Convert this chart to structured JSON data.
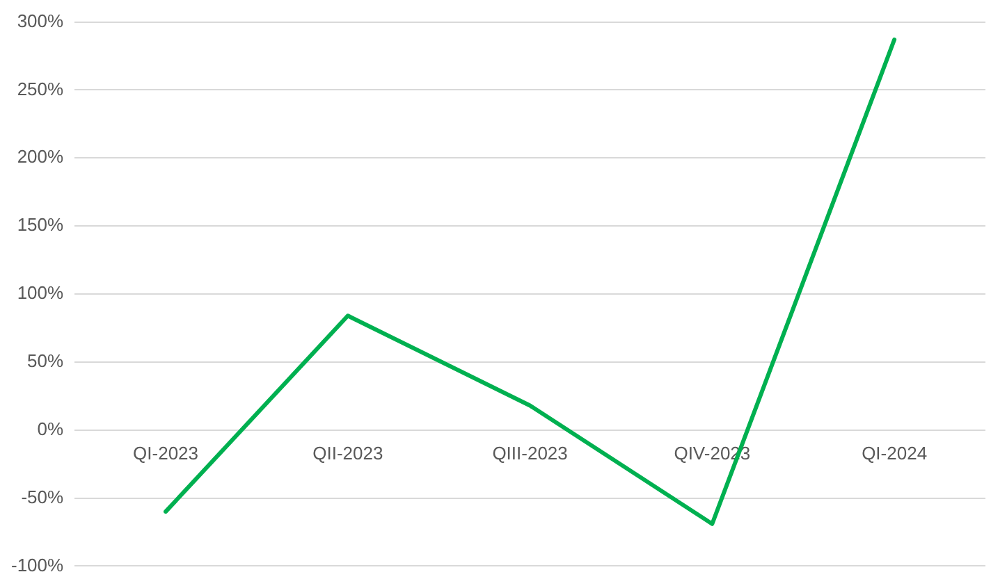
{
  "chart_data": {
    "type": "line",
    "categories": [
      "QI-2023",
      "QII-2023",
      "QIII-2023",
      "QIV-2023",
      "QI-2024"
    ],
    "series": [
      {
        "color": "#00b050",
        "values": [
          -60,
          84,
          18,
          -69,
          287
        ]
      }
    ],
    "ylim": [
      -100,
      300
    ],
    "yticks": [
      {
        "value": -100,
        "label": "-100%"
      },
      {
        "value": -50,
        "label": "-50%"
      },
      {
        "value": 0,
        "label": "0%"
      },
      {
        "value": 50,
        "label": "50%"
      },
      {
        "value": 100,
        "label": "100%"
      },
      {
        "value": 150,
        "label": "150%"
      },
      {
        "value": 200,
        "label": "200%"
      },
      {
        "value": 250,
        "label": "250%"
      },
      {
        "value": 300,
        "label": "300%"
      }
    ],
    "grid": "y",
    "marker": "none",
    "line_style": "solid"
  }
}
